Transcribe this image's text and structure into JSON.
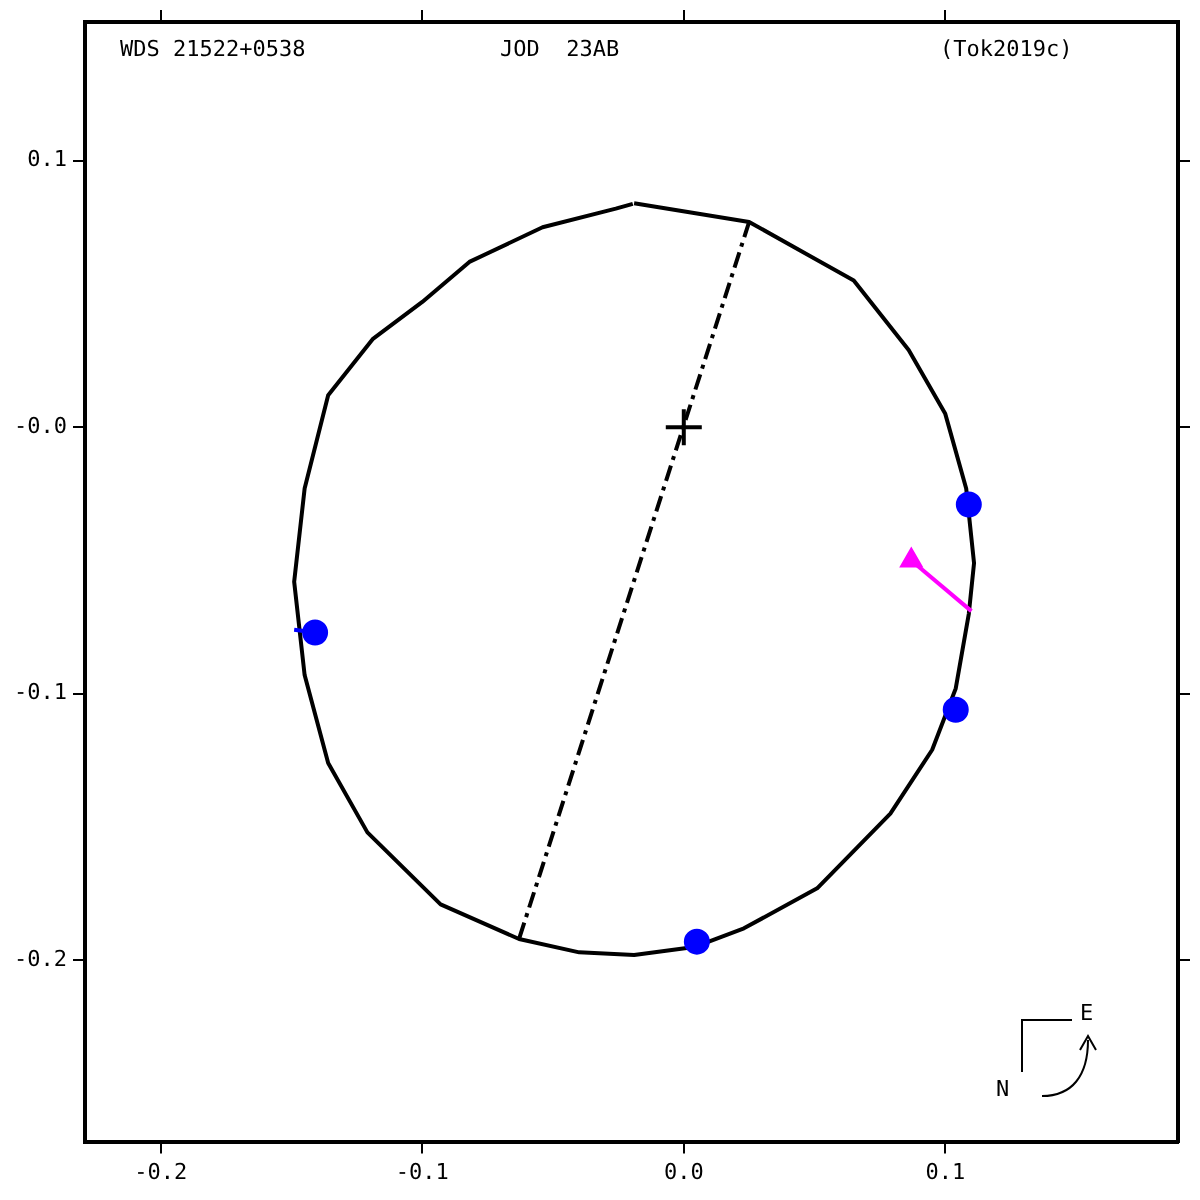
{
  "chart_data": {
    "type": "scatter",
    "annotations": [
      "WDS 21522+0538",
      "JOD  23AB",
      "(Tok2019c)",
      "E",
      "N"
    ],
    "xlim": [
      -0.229,
      0.189
    ],
    "xticks": [
      -0.2,
      -0.1,
      {
        "value": 0,
        "label": "0.0"
      },
      0.1
    ],
    "ylim": [
      -0.268,
      0.152
    ],
    "yticks": [
      -0.2,
      -0.1,
      {
        "value": 0,
        "label": "-0.0"
      },
      0.1
    ],
    "grid": false,
    "legend": false,
    "series": [
      {
        "type": "line",
        "color": "#000000",
        "marker": "none",
        "line_style": "solid",
        "x": [
          -0.019,
          0.025,
          0.065,
          0.086,
          0.1,
          0.108,
          0.111,
          0.109,
          0.104,
          0.095,
          0.079,
          0.051,
          0.023,
          0.004,
          -0.019,
          -0.04,
          -0.063,
          -0.093,
          -0.121,
          -0.136,
          -0.145,
          -0.149,
          -0.145,
          -0.136,
          -0.119,
          -0.1,
          -0.082,
          -0.054,
          -0.026,
          -0.0195
        ],
        "values": [
          0.084,
          0.077,
          0.055,
          0.029,
          0.005,
          -0.023,
          -0.051,
          -0.07,
          -0.098,
          -0.121,
          -0.145,
          -0.173,
          -0.188,
          -0.195,
          -0.198,
          -0.197,
          -0.192,
          -0.179,
          -0.152,
          -0.126,
          -0.093,
          -0.058,
          -0.023,
          0.012,
          0.033,
          0.047,
          0.062,
          0.075,
          0.082,
          0.0838
        ]
      },
      {
        "type": "line",
        "color": "#000000",
        "marker": "none",
        "line_style": "dashed",
        "x": [
          0.025,
          -0.063
        ],
        "values": [
          0.077,
          -0.192
        ]
      },
      {
        "type": "line",
        "color": "#0000ff",
        "marker": "none",
        "line_style": "solid",
        "x": [
          -0.141,
          -0.149
        ],
        "values": [
          -0.077,
          -0.076
        ]
      },
      {
        "type": "line",
        "color": "#ff00ff",
        "marker": "none",
        "line_style": "solid",
        "x": [
          0.087,
          0.11
        ],
        "values": [
          -0.05,
          -0.069
        ]
      },
      {
        "type": "scatter",
        "color": "#0000ff",
        "marker": "circle",
        "x": [
          0.109,
          -0.141,
          0.104,
          0.005
        ],
        "values": [
          -0.029,
          -0.077,
          -0.106,
          -0.193
        ]
      },
      {
        "type": "scatter",
        "color": "#ff00ff",
        "marker": "triangle",
        "x": [
          0.087
        ],
        "values": [
          -0.05
        ]
      },
      {
        "type": "scatter",
        "color": "#000000",
        "marker": "cross",
        "x": [
          0
        ],
        "values": [
          0
        ]
      }
    ]
  }
}
